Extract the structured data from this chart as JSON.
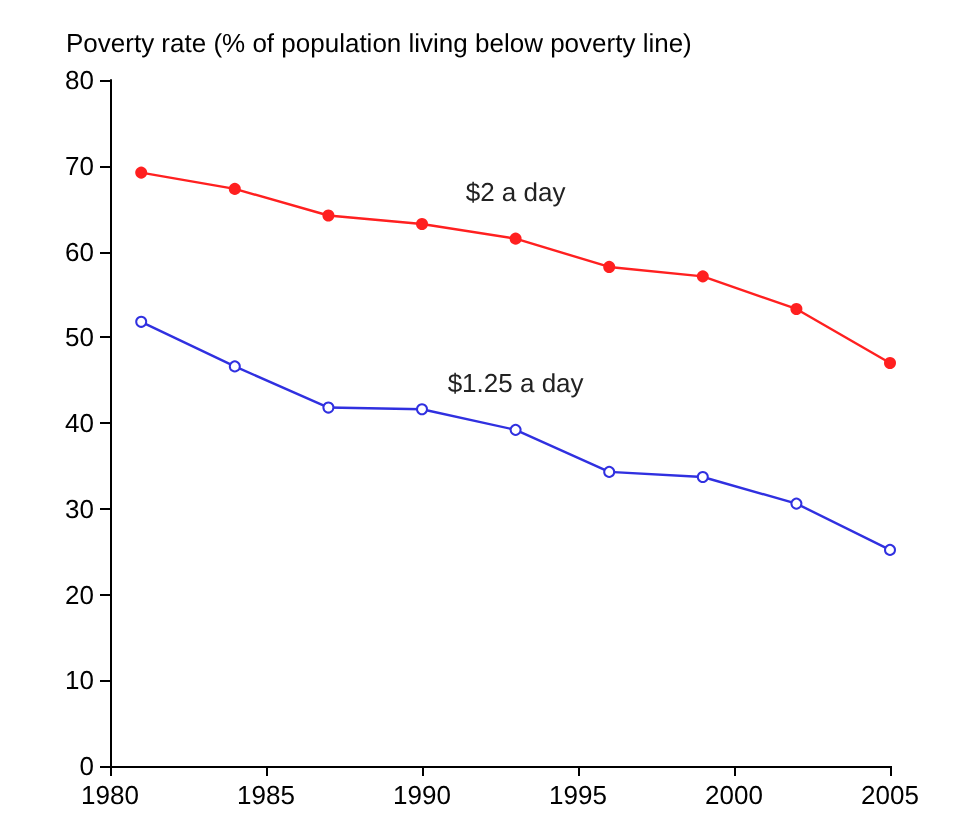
{
  "chart_data": {
    "type": "line",
    "ylabel": "Poverty rate (% of population living below poverty line)",
    "x": [
      1981,
      1984,
      1987,
      1990,
      1993,
      1996,
      1999,
      2002,
      2005
    ],
    "series": [
      {
        "name": "$2 a day",
        "color": "#ff2020",
        "values": [
          69.2,
          67.3,
          64.2,
          63.2,
          61.5,
          58.2,
          57.1,
          53.3,
          47.0
        ]
      },
      {
        "name": "$1.25 a day",
        "color": "#3030e0",
        "values": [
          51.8,
          46.6,
          41.8,
          41.6,
          39.2,
          34.3,
          33.7,
          30.6,
          25.2
        ]
      }
    ],
    "xlim": [
      1980,
      2005
    ],
    "xticks": [
      1980,
      1985,
      1990,
      1995,
      2000,
      2005
    ],
    "ylim": [
      0,
      80
    ],
    "yticks": [
      0,
      10,
      20,
      30,
      40,
      50,
      60,
      70,
      80
    ],
    "marker": "circle",
    "line_style": "solid",
    "grid": false,
    "legend": false
  }
}
